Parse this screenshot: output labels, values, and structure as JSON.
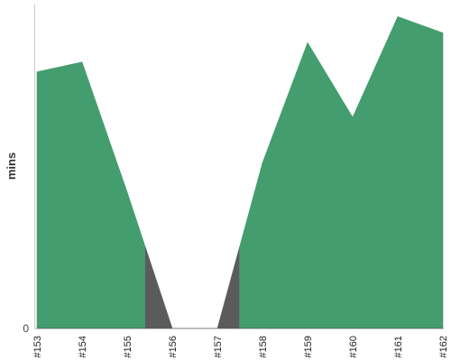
{
  "chart_data": {
    "type": "area",
    "title": "",
    "xlabel": "",
    "ylabel": "mins",
    "categories": [
      "#153",
      "#154",
      "#155",
      "#156",
      "#157",
      "#158",
      "#159",
      "#160",
      "#161",
      "#162"
    ],
    "values": [
      79,
      82,
      42,
      0,
      0,
      51,
      88,
      65,
      96,
      91
    ],
    "y_ticks": [
      "0"
    ],
    "ylim": [
      0,
      100
    ],
    "grid": false,
    "legend": "none",
    "colors": {
      "normal": "#449d6e",
      "low": "#5b5b5b",
      "axis": "#cccccc"
    },
    "low_threshold": 25
  }
}
